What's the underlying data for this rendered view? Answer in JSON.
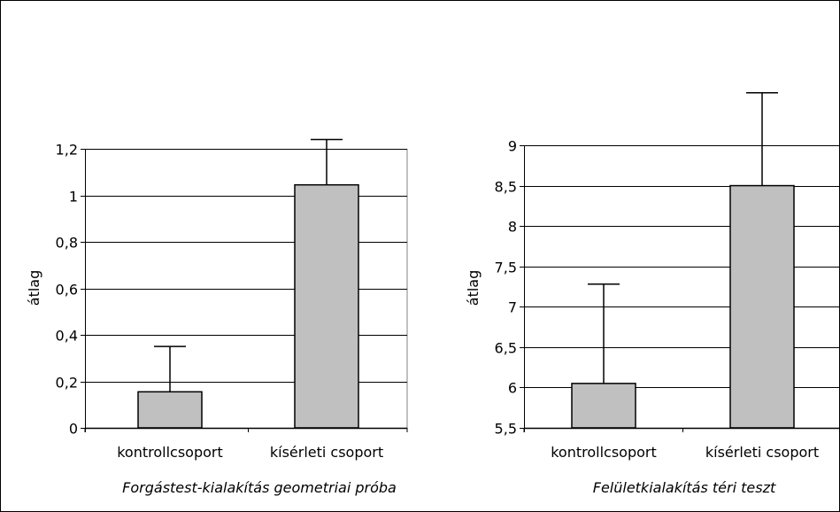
{
  "chart_data": [
    {
      "type": "bar",
      "categories": [
        "kontrollcsoport",
        "kísérleti csoport"
      ],
      "values": [
        0.155,
        1.045
      ],
      "error_high": [
        0.35,
        1.24
      ],
      "title": "Forgástest-kialakítás geometriai próba",
      "ylabel": "átlag",
      "ylim": [
        0,
        1.2
      ],
      "yticks": [
        0,
        0.2,
        0.4,
        0.6,
        0.8,
        1,
        1.2
      ],
      "ytick_labels": [
        "0",
        "0,2",
        "0,4",
        "0,6",
        "0,8",
        "1",
        "1,2"
      ],
      "grid": true,
      "bar_color": "#c0c0c0"
    },
    {
      "type": "bar",
      "categories": [
        "kontrollcsoport",
        "kísérleti csoport"
      ],
      "values": [
        6.05,
        8.5
      ],
      "error_high": [
        7.28,
        9.65
      ],
      "title": "Felületkialakítás téri teszt",
      "ylabel": "átlag",
      "ylim": [
        5.5,
        9
      ],
      "yticks": [
        5.5,
        6,
        6.5,
        7,
        7.5,
        8,
        8.5,
        9
      ],
      "ytick_labels": [
        "5,5",
        "6",
        "6,5",
        "7",
        "7,5",
        "8",
        "8,5",
        "9"
      ],
      "grid": true,
      "bar_color": "#c0c0c0"
    }
  ]
}
